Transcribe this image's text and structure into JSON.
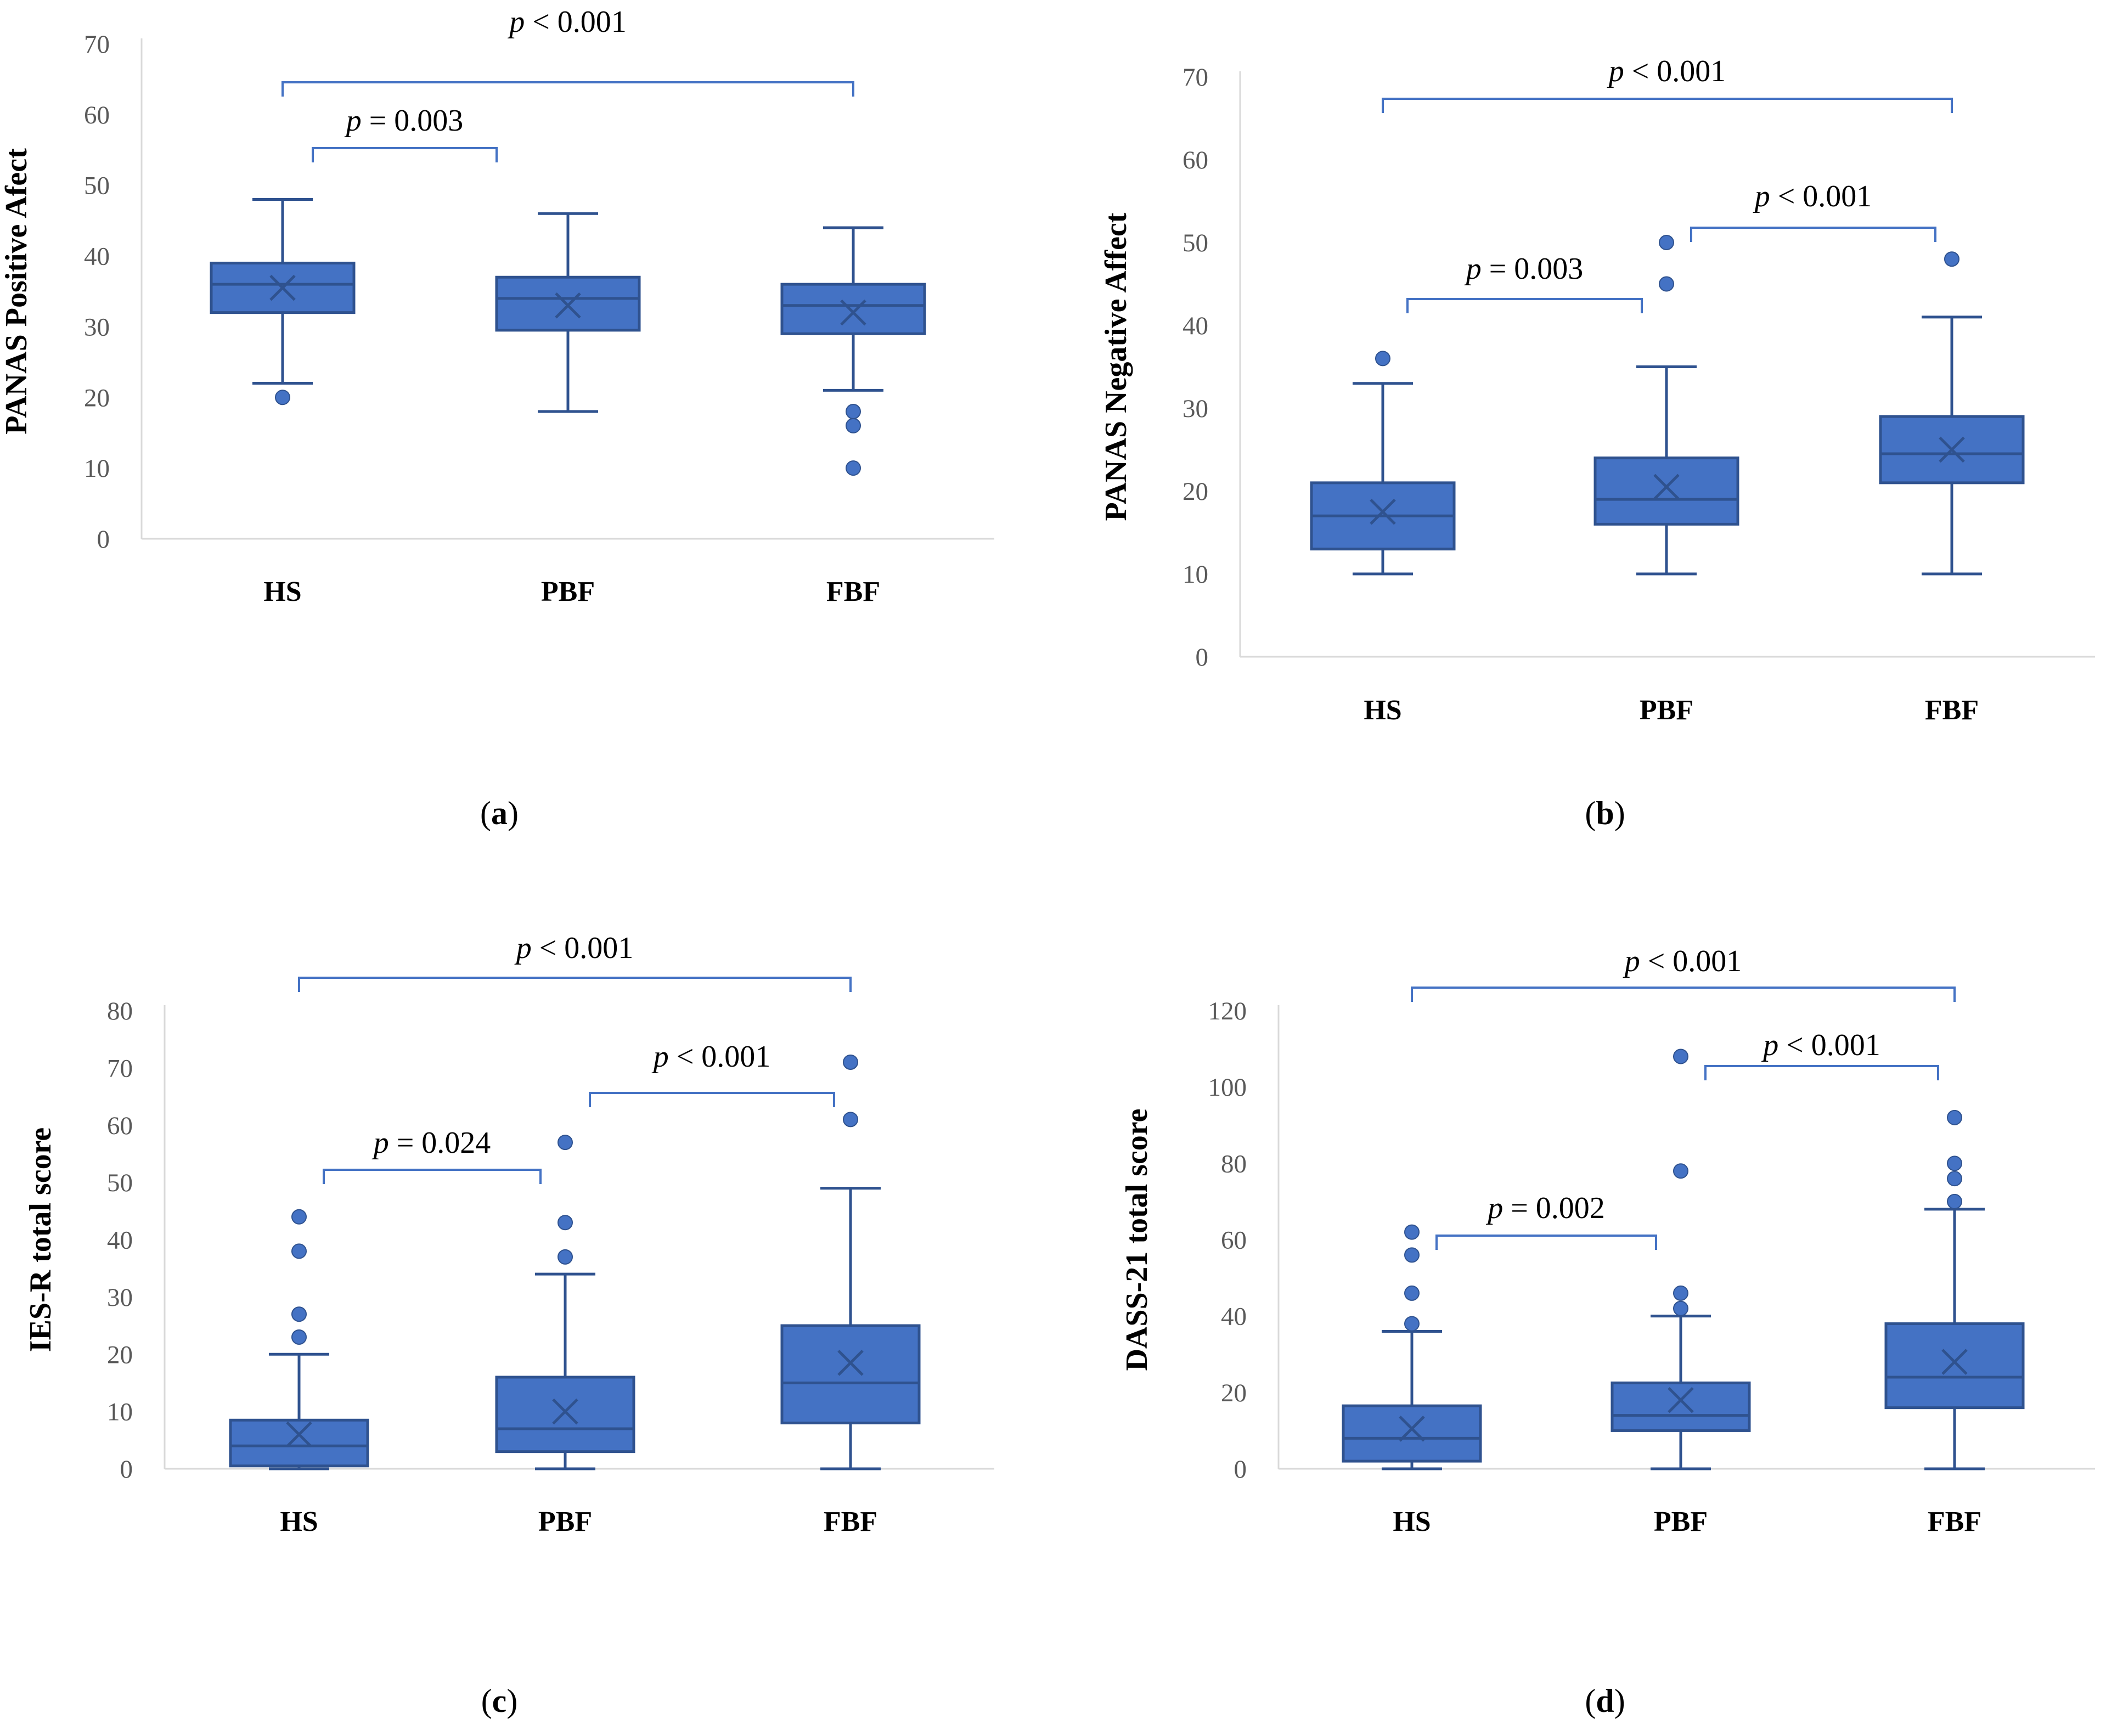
{
  "colors": {
    "box": "#4472c4",
    "stroke": "#2f528f",
    "bracket": "#4472c4",
    "axis": "#d9d9d9"
  },
  "chart_data": [
    {
      "panel": "(a)",
      "panel_letter": "a",
      "type": "box",
      "ylabel": "PANAS Positive Afect",
      "ylim": [
        0,
        70
      ],
      "yticks": [
        0,
        10,
        20,
        30,
        40,
        50,
        60,
        70
      ],
      "categories": [
        "HS",
        "PBF",
        "FBF"
      ],
      "boxes": [
        {
          "category": "HS",
          "whisker_low": 22,
          "q1": 32,
          "median": 36,
          "q3": 39,
          "whisker_high": 48,
          "mean": 35.5,
          "outliers": [
            20
          ]
        },
        {
          "category": "PBF",
          "whisker_low": 18,
          "q1": 29.5,
          "median": 34,
          "q3": 37,
          "whisker_high": 46,
          "mean": 33,
          "outliers": []
        },
        {
          "category": "FBF",
          "whisker_low": 21,
          "q1": 29,
          "median": 33,
          "q3": 36,
          "whisker_high": 44,
          "mean": 32,
          "outliers": [
            18,
            16,
            10
          ]
        }
      ],
      "comparisons": [
        {
          "from": "HS",
          "to": "FBF",
          "p_symbol": "p",
          "p_rest": " < 0.001"
        },
        {
          "from": "HS",
          "to": "PBF",
          "p_symbol": "p",
          "p_rest": " = 0.003"
        }
      ]
    },
    {
      "panel": "(b)",
      "panel_letter": "b",
      "type": "box",
      "ylabel": "PANAS Negative Affect",
      "ylim": [
        0,
        70
      ],
      "yticks": [
        0,
        10,
        20,
        30,
        40,
        50,
        60,
        70
      ],
      "categories": [
        "HS",
        "PBF",
        "FBF"
      ],
      "boxes": [
        {
          "category": "HS",
          "whisker_low": 10,
          "q1": 13,
          "median": 17,
          "q3": 21,
          "whisker_high": 33,
          "mean": 17.5,
          "outliers": [
            36
          ]
        },
        {
          "category": "PBF",
          "whisker_low": 10,
          "q1": 16,
          "median": 19,
          "q3": 24,
          "whisker_high": 35,
          "mean": 20.5,
          "outliers": [
            45,
            50
          ]
        },
        {
          "category": "FBF",
          "whisker_low": 10,
          "q1": 21,
          "median": 24.5,
          "q3": 29,
          "whisker_high": 41,
          "mean": 25,
          "outliers": [
            48
          ]
        }
      ],
      "comparisons": [
        {
          "from": "HS",
          "to": "FBF",
          "p_symbol": "p",
          "p_rest": " < 0.001"
        },
        {
          "from": "PBF",
          "to": "FBF",
          "p_symbol": "p",
          "p_rest": " < 0.001"
        },
        {
          "from": "HS",
          "to": "PBF",
          "p_symbol": "p",
          "p_rest": " = 0.003"
        }
      ]
    },
    {
      "panel": "(c)",
      "panel_letter": "c",
      "type": "box",
      "ylabel": "IES-R total score",
      "ylim": [
        0,
        80
      ],
      "yticks": [
        0,
        10,
        20,
        30,
        40,
        50,
        60,
        70,
        80
      ],
      "categories": [
        "HS",
        "PBF",
        "FBF"
      ],
      "boxes": [
        {
          "category": "HS",
          "whisker_low": 0,
          "q1": 0.5,
          "median": 4,
          "q3": 8.5,
          "whisker_high": 20,
          "mean": 6,
          "outliers": [
            23,
            27,
            38,
            44
          ]
        },
        {
          "category": "PBF",
          "whisker_low": 0,
          "q1": 3,
          "median": 7,
          "q3": 16,
          "whisker_high": 34,
          "mean": 10,
          "outliers": [
            37,
            43,
            57
          ]
        },
        {
          "category": "FBF",
          "whisker_low": 0,
          "q1": 8,
          "median": 15,
          "q3": 25,
          "whisker_high": 49,
          "mean": 18.5,
          "outliers": [
            61,
            71
          ]
        }
      ],
      "comparisons": [
        {
          "from": "HS",
          "to": "FBF",
          "p_symbol": "p",
          "p_rest": " < 0.001"
        },
        {
          "from": "PBF",
          "to": "FBF",
          "p_symbol": "p",
          "p_rest": " < 0.001"
        },
        {
          "from": "HS",
          "to": "PBF",
          "p_symbol": "p",
          "p_rest": " = 0.024"
        }
      ]
    },
    {
      "panel": "(d)",
      "panel_letter": "d",
      "type": "box",
      "ylabel": "DASS-21 total score",
      "ylim": [
        0,
        120
      ],
      "yticks": [
        0,
        20,
        40,
        60,
        80,
        100,
        120
      ],
      "categories": [
        "HS",
        "PBF",
        "FBF"
      ],
      "boxes": [
        {
          "category": "HS",
          "whisker_low": 0,
          "q1": 2,
          "median": 8,
          "q3": 16.5,
          "whisker_high": 36,
          "mean": 10.5,
          "outliers": [
            38,
            46,
            56,
            62
          ]
        },
        {
          "category": "PBF",
          "whisker_low": 0,
          "q1": 10,
          "median": 14,
          "q3": 22.5,
          "whisker_high": 40,
          "mean": 18,
          "outliers": [
            42,
            46,
            78,
            108
          ]
        },
        {
          "category": "FBF",
          "whisker_low": 0,
          "q1": 16,
          "median": 24,
          "q3": 38,
          "whisker_high": 68,
          "mean": 28,
          "outliers": [
            70,
            76,
            80,
            92
          ]
        }
      ],
      "comparisons": [
        {
          "from": "HS",
          "to": "FBF",
          "p_symbol": "p",
          "p_rest": " < 0.001"
        },
        {
          "from": "PBF",
          "to": "FBF",
          "p_symbol": "p",
          "p_rest": " < 0.001"
        },
        {
          "from": "HS",
          "to": "PBF",
          "p_symbol": "p",
          "p_rest": " = 0.002"
        }
      ]
    }
  ]
}
